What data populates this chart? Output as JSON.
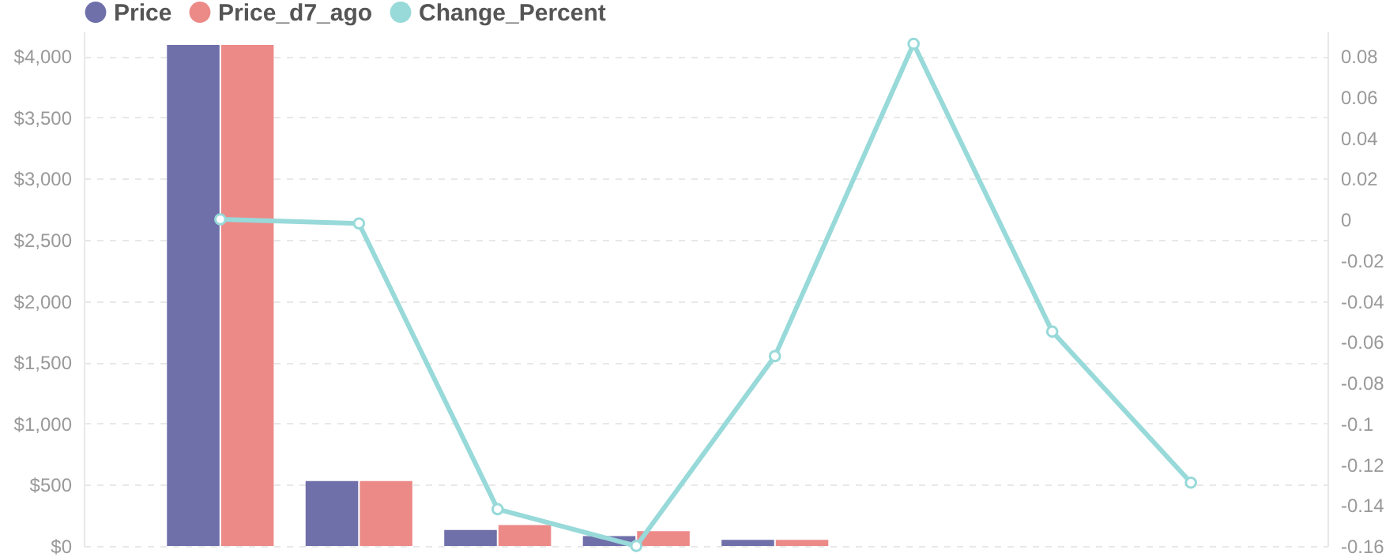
{
  "chart_data": {
    "type": "bar",
    "categories": [
      null,
      null,
      null,
      null,
      null,
      null,
      null,
      null
    ],
    "series": [
      {
        "name": "Price",
        "color": "#6f6faa",
        "values": [
          4090,
          530,
          130,
          80,
          50,
          null,
          null,
          null
        ]
      },
      {
        "name": "Price_d7_ago",
        "color": "#ec8a88",
        "values": [
          4090,
          530,
          170,
          120,
          50,
          null,
          null,
          null
        ]
      },
      {
        "name": "Change_Percent",
        "type": "line",
        "axis": "y2",
        "color": "#98d9d9",
        "values": [
          0,
          -0.002,
          -0.142,
          -0.16,
          -0.067,
          0.086,
          -0.055,
          -0.129
        ]
      }
    ],
    "ylim": [
      0,
      4200
    ],
    "yticks": [
      {
        "value": 0,
        "label": "$0"
      },
      {
        "value": 500,
        "label": "$500"
      },
      {
        "value": 1000,
        "label": "$1,000"
      },
      {
        "value": 1500,
        "label": "$1,500"
      },
      {
        "value": 2000,
        "label": "$2,000"
      },
      {
        "value": 2500,
        "label": "$2,500"
      },
      {
        "value": 3000,
        "label": "$3,000"
      },
      {
        "value": 3500,
        "label": "$3,500"
      },
      {
        "value": 4000,
        "label": "$4,000"
      }
    ],
    "y2lim": [
      -0.16,
      0.092
    ],
    "y2ticks": [
      -0.16,
      -0.14,
      -0.12,
      -0.1,
      -0.08,
      -0.06,
      -0.04,
      -0.02,
      0,
      0.02,
      0.04,
      0.06,
      0.08
    ],
    "grid": "y",
    "legend": "top left",
    "marker": "circle",
    "line_style": "solid"
  }
}
